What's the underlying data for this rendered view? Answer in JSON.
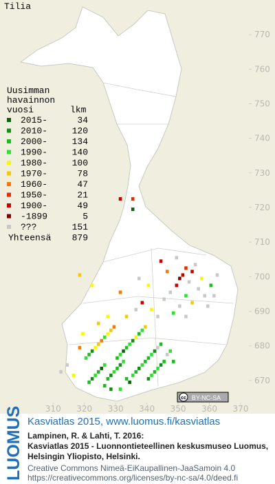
{
  "map": {
    "title": "Tilia",
    "legend": {
      "header": [
        "Uusimman",
        "havainnon",
        "vuosi"
      ],
      "count_header": "lkm",
      "entries": [
        {
          "label": "2015-",
          "count": 34,
          "color": "#0a640a"
        },
        {
          "label": "2010-",
          "count": 120,
          "color": "#109010"
        },
        {
          "label": "2000-",
          "count": 134,
          "color": "#1cbc1c"
        },
        {
          "label": "1990-",
          "count": 140,
          "color": "#30e030"
        },
        {
          "label": "1980-",
          "count": 100,
          "color": "#f8f800"
        },
        {
          "label": "1970-",
          "count": 78,
          "color": "#f8c800"
        },
        {
          "label": "1960-",
          "count": 47,
          "color": "#f87800"
        },
        {
          "label": "1950-",
          "count": 21,
          "color": "#e03000"
        },
        {
          "label": "1900-",
          "count": 49,
          "color": "#c80000"
        },
        {
          "label": "-1899",
          "count": 5,
          "color": "#800000"
        },
        {
          "label": "???",
          "count": 151,
          "color": "#c8c8c8"
        }
      ],
      "total_label": "Yhteensä",
      "total": 879
    },
    "xlim": [
      293,
      381
    ],
    "ylim": [
      664,
      780
    ],
    "xticks": [
      310,
      320,
      330,
      340,
      350,
      360,
      370
    ],
    "yticks": [
      670,
      680,
      690,
      700,
      710,
      720,
      730,
      740,
      750,
      760,
      770
    ],
    "cells": [
      [
        335,
        719,
        0
      ],
      [
        331,
        722,
        8
      ],
      [
        335,
        722,
        7
      ],
      [
        321,
        669,
        2
      ],
      [
        322,
        670,
        1
      ],
      [
        323,
        671,
        3
      ],
      [
        324,
        672,
        2
      ],
      [
        325,
        673,
        0
      ],
      [
        326,
        674,
        3
      ],
      [
        327,
        670,
        2
      ],
      [
        328,
        671,
        1
      ],
      [
        329,
        672,
        3
      ],
      [
        330,
        673,
        2
      ],
      [
        331,
        674,
        1
      ],
      [
        332,
        675,
        3
      ],
      [
        333,
        670,
        2
      ],
      [
        334,
        669,
        0
      ],
      [
        335,
        671,
        3
      ],
      [
        336,
        672,
        2
      ],
      [
        337,
        673,
        1
      ],
      [
        338,
        674,
        3
      ],
      [
        339,
        675,
        2
      ],
      [
        340,
        670,
        1
      ],
      [
        341,
        671,
        3
      ],
      [
        342,
        672,
        2
      ],
      [
        343,
        673,
        3
      ],
      [
        344,
        674,
        1
      ],
      [
        345,
        675,
        2
      ],
      [
        320,
        676,
        3
      ],
      [
        321,
        677,
        2
      ],
      [
        322,
        678,
        1
      ],
      [
        323,
        679,
        4
      ],
      [
        324,
        680,
        5
      ],
      [
        325,
        681,
        6
      ],
      [
        326,
        682,
        3
      ],
      [
        327,
        683,
        4
      ],
      [
        328,
        684,
        5
      ],
      [
        329,
        685,
        6
      ],
      [
        330,
        676,
        2
      ],
      [
        331,
        677,
        3
      ],
      [
        332,
        678,
        0
      ],
      [
        333,
        679,
        2
      ],
      [
        334,
        680,
        3
      ],
      [
        335,
        681,
        1
      ],
      [
        336,
        682,
        4
      ],
      [
        337,
        683,
        2
      ],
      [
        338,
        684,
        3
      ],
      [
        339,
        685,
        5
      ],
      [
        340,
        676,
        2
      ],
      [
        341,
        677,
        3
      ],
      [
        342,
        678,
        1
      ],
      [
        343,
        679,
        10
      ],
      [
        344,
        680,
        2
      ],
      [
        346,
        677,
        10
      ],
      [
        347,
        678,
        3
      ],
      [
        348,
        675,
        2
      ],
      [
        326,
        668,
        2
      ],
      [
        328,
        667,
        1
      ],
      [
        331,
        667,
        3
      ],
      [
        316,
        671,
        4
      ],
      [
        314,
        674,
        10
      ],
      [
        312,
        672,
        10
      ],
      [
        318,
        679,
        6
      ],
      [
        319,
        683,
        4
      ],
      [
        324,
        686,
        5
      ],
      [
        327,
        688,
        4
      ],
      [
        333,
        688,
        5
      ],
      [
        336,
        690,
        10
      ],
      [
        338,
        692,
        8
      ],
      [
        341,
        690,
        4
      ],
      [
        343,
        688,
        10
      ],
      [
        345,
        693,
        10
      ],
      [
        347,
        695,
        10
      ],
      [
        349,
        697,
        8
      ],
      [
        350,
        699,
        9
      ],
      [
        351,
        700,
        8
      ],
      [
        352,
        702,
        7
      ],
      [
        353,
        698,
        10
      ],
      [
        354,
        701,
        8
      ],
      [
        355,
        703,
        10
      ],
      [
        356,
        696,
        10
      ],
      [
        357,
        699,
        4
      ],
      [
        358,
        694,
        10
      ],
      [
        359,
        691,
        10
      ],
      [
        360,
        697,
        2
      ],
      [
        361,
        694,
        10
      ],
      [
        348,
        689,
        3
      ],
      [
        350,
        691,
        10
      ],
      [
        352,
        688,
        10
      ],
      [
        354,
        692,
        5
      ],
      [
        346,
        701,
        6
      ],
      [
        344,
        704,
        8
      ],
      [
        349,
        705,
        10
      ],
      [
        340,
        697,
        4
      ],
      [
        337,
        699,
        10
      ],
      [
        331,
        695,
        6
      ],
      [
        322,
        697,
        4
      ],
      [
        318,
        700,
        5
      ],
      [
        362,
        700,
        10
      ],
      [
        352,
        694,
        3
      ]
    ],
    "badge": {
      "cc": "cc",
      "label": "BY-NC-SA"
    },
    "footer": {
      "brand": "LUOMUS",
      "headline": "Kasviatlas 2015, www.luomus.fi/kasviatlas",
      "citation": [
        "Lampinen, R. & Lahti, T. 2016:",
        "Kasviatlas 2015 - Luonnontieteellinen keskusmuseo Luomus,",
        "Helsingin Yliopisto, Helsinki."
      ],
      "license": [
        "Creative Commons Nimeä-EiKaupallinen-JaaSamoin 4.0",
        "https://creativecommons.org/licenses/by-nc-sa/4.0/deed.fi"
      ]
    }
  }
}
